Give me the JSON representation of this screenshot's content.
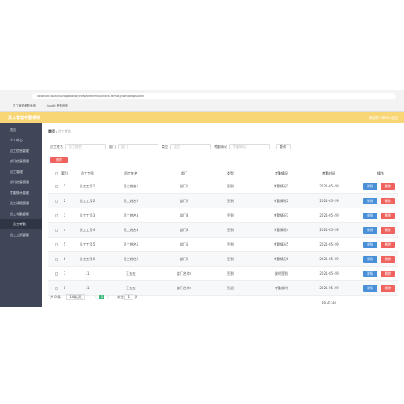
{
  "browser": {
    "url": "localhost:8080/springboot/qy5ww/admin/dist/index.html#/yuangongkaoqin",
    "tabs": [
      "员工管理考勤系统",
      "SpgDt 考勤系统"
    ]
  },
  "header": {
    "title": "员工管理考勤系统",
    "user": "欢迎你 admin 退出"
  },
  "menu": [
    "首页",
    "个人中心",
    "员工信息管理",
    "部门信息管理",
    "员工管理",
    "部门信息管理",
    "考勤统计管理",
    "员工请假管理",
    "员工考勤管理",
    "员工考勤",
    "员工工资管理"
  ],
  "breadcrumb": [
    "首页",
    "员工考勤"
  ],
  "search": {
    "fields": [
      {
        "label": "员工姓名",
        "placeholder": "员工姓名"
      },
      {
        "label": "部门",
        "placeholder": "部门"
      },
      {
        "label": "类型",
        "placeholder": "类型"
      },
      {
        "label": "考勤情况",
        "placeholder": "考勤情况"
      }
    ],
    "button": "查询"
  },
  "delete_button": "删除",
  "table": {
    "columns": [
      "索引",
      "员工工号",
      "员工姓名",
      "部门",
      "类型",
      "考勤情况",
      "考勤时间",
      "操作"
    ],
    "rows": [
      [
        "1",
        "员工工号1",
        "员工姓名1",
        "部门1",
        "签到",
        "考勤情况1",
        "2021-05-29 16:37:28"
      ],
      [
        "2",
        "员工工号2",
        "员工姓名2",
        "部门2",
        "签到",
        "考勤情况2",
        "2021-05-29 16:37:28"
      ],
      [
        "3",
        "员工工号3",
        "员工姓名3",
        "部门3",
        "签到",
        "考勤情况3",
        "2021-05-29 16:37:28"
      ],
      [
        "4",
        "员工工号4",
        "员工姓名4",
        "部门4",
        "签到",
        "考勤情况4",
        "2021-05-29 16:37:28"
      ],
      [
        "5",
        "员工工号5",
        "员工姓名5",
        "部门5",
        "签到",
        "考勤情况5",
        "2021-05-29 16:37:28"
      ],
      [
        "6",
        "员工工号6",
        "员工姓名6",
        "部门6",
        "签到",
        "考勤情况6",
        "2021-05-29 16:37:28"
      ],
      [
        "7",
        "11",
        "王五五",
        "部门名称4",
        "签到",
        "按时签到",
        "2021-05-29 16:36:02"
      ],
      [
        "8",
        "11",
        "王五五",
        "部门名称4",
        "签退",
        "考勤准时",
        "2021-05-29 16:35:34"
      ]
    ],
    "actions": [
      "详情",
      "删除"
    ]
  },
  "pagination": {
    "total": "共 8 条",
    "size": "10条/页",
    "page": "1",
    "goto": "前往",
    "unit": "页"
  }
}
